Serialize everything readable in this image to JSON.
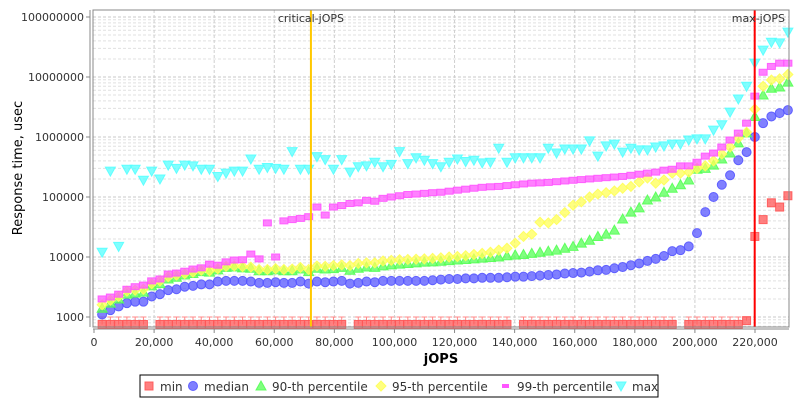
{
  "chart_data": {
    "type": "scatter",
    "xlabel": "jOPS",
    "ylabel": "Response time, usec",
    "xlim": [
      0,
      231500
    ],
    "ylim": [
      680,
      130000000
    ],
    "yscale": "log",
    "grid": true,
    "legend_placement": "bottom",
    "x_ticks": [
      0,
      20000,
      40000,
      60000,
      80000,
      100000,
      120000,
      140000,
      160000,
      180000,
      200000,
      220000
    ],
    "x_tick_labels": [
      "0",
      "20,000",
      "40,000",
      "60,000",
      "80,000",
      "100,000",
      "120,000",
      "140,000",
      "160,000",
      "180,000",
      "200,000",
      "220,000"
    ],
    "y_ticks": [
      1000,
      10000,
      100000,
      1000000,
      10000000,
      100000000
    ],
    "y_tick_labels": [
      "1000",
      "10000",
      "100000",
      "1000000",
      "10000000",
      "100000000"
    ],
    "annotations": [
      {
        "label": "critical-jOPS",
        "x": 72200,
        "color": "#ffc800"
      },
      {
        "label": "max-jOPS",
        "x": 219900,
        "color": "#ff0000"
      }
    ],
    "x": [
      2700,
      5450,
      8200,
      10950,
      13700,
      16450,
      19200,
      21950,
      24700,
      27450,
      30200,
      32950,
      35700,
      38450,
      41200,
      43950,
      46700,
      49450,
      52200,
      54950,
      57700,
      60450,
      63200,
      65950,
      68700,
      71450,
      74200,
      76950,
      79700,
      82450,
      85200,
      87950,
      90700,
      93450,
      96200,
      98950,
      101700,
      104450,
      107200,
      109950,
      112700,
      115450,
      118200,
      120950,
      123700,
      126450,
      129200,
      131950,
      134700,
      137450,
      140200,
      142950,
      145700,
      148450,
      151200,
      153950,
      156700,
      159450,
      162200,
      164950,
      167700,
      170450,
      173200,
      175950,
      178700,
      181450,
      184200,
      186950,
      189700,
      192450,
      195200,
      197950,
      200700,
      203450,
      206200,
      208950,
      211700,
      214450,
      217200,
      219950,
      222700,
      225450,
      228200,
      230950
    ],
    "series": [
      {
        "name": "min",
        "color": "#ff5555",
        "marker": "square",
        "values": [
          750,
          750,
          750,
          750,
          750,
          750,
          null,
          750,
          750,
          750,
          750,
          750,
          750,
          750,
          750,
          750,
          750,
          750,
          750,
          750,
          750,
          750,
          750,
          750,
          750,
          750,
          750,
          750,
          750,
          750,
          null,
          750,
          750,
          750,
          750,
          750,
          750,
          750,
          750,
          750,
          750,
          750,
          750,
          750,
          750,
          750,
          750,
          750,
          750,
          750,
          null,
          750,
          750,
          750,
          750,
          750,
          750,
          750,
          750,
          750,
          750,
          750,
          750,
          750,
          750,
          750,
          750,
          750,
          750,
          750,
          null,
          750,
          750,
          750,
          750,
          750,
          750,
          750,
          870,
          22000,
          42000,
          80000,
          68000,
          105000
        ]
      },
      {
        "name": "median",
        "color": "#5555ff",
        "marker": "circle",
        "values": [
          1100,
          1300,
          1500,
          1700,
          1800,
          1800,
          2200,
          2400,
          2800,
          2900,
          3200,
          3300,
          3500,
          3500,
          3900,
          4000,
          4000,
          4000,
          3900,
          3700,
          3700,
          3800,
          3700,
          3700,
          3900,
          3600,
          3900,
          3800,
          3900,
          4000,
          3600,
          3700,
          3900,
          3800,
          4000,
          4000,
          4000,
          4000,
          4000,
          4000,
          4100,
          4200,
          4300,
          4300,
          4400,
          4400,
          4500,
          4500,
          4500,
          4600,
          4700,
          4700,
          4800,
          4900,
          5000,
          5100,
          5300,
          5400,
          5500,
          5700,
          6000,
          6100,
          6500,
          6800,
          7300,
          7800,
          8600,
          9300,
          10400,
          12500,
          13000,
          15000,
          25000,
          56000,
          100000,
          160000,
          230000,
          410000,
          560000,
          1000000,
          1700000,
          2200000,
          2500000,
          2800000
        ]
      },
      {
        "name": "90-th percentile",
        "color": "#55ff55",
        "marker": "triangle-up",
        "values": [
          1400,
          1700,
          2000,
          2400,
          2500,
          2600,
          3300,
          3600,
          4300,
          4600,
          5000,
          5300,
          5700,
          5600,
          6100,
          6700,
          6800,
          6600,
          6500,
          5900,
          5900,
          6100,
          5900,
          5900,
          6300,
          5700,
          6500,
          6300,
          6400,
          6700,
          6000,
          6500,
          6800,
          6700,
          7100,
          7400,
          7600,
          7800,
          8000,
          8200,
          8300,
          8500,
          8700,
          8900,
          9100,
          9300,
          9600,
          9800,
          10000,
          10500,
          10800,
          11000,
          11500,
          12000,
          12500,
          13000,
          14000,
          15000,
          17000,
          19000,
          22000,
          24000,
          28000,
          43000,
          56000,
          66000,
          89000,
          100000,
          120000,
          140000,
          160000,
          192000,
          290000,
          300000,
          340000,
          430000,
          540000,
          800000,
          1170000,
          2200000,
          5000000,
          6500000,
          6800000,
          8200000
        ]
      },
      {
        "name": "95-th percentile",
        "color": "#ffff55",
        "marker": "diamond",
        "values": [
          1600,
          1900,
          2200,
          2700,
          2800,
          2900,
          3600,
          4000,
          4700,
          5000,
          5300,
          5600,
          6000,
          5900,
          6400,
          7000,
          7100,
          6900,
          6800,
          6200,
          6200,
          6400,
          6200,
          6300,
          6700,
          6200,
          7100,
          7000,
          7200,
          7400,
          7200,
          7800,
          8000,
          8000,
          8600,
          8800,
          9000,
          9100,
          9200,
          9300,
          9500,
          9700,
          10000,
          10200,
          10500,
          11000,
          11500,
          12000,
          13000,
          14000,
          17000,
          22000,
          24000,
          38000,
          37000,
          42000,
          55000,
          73000,
          83000,
          100000,
          112000,
          118000,
          126000,
          140000,
          150000,
          178000,
          207000,
          170000,
          192000,
          250000,
          250000,
          260000,
          300000,
          330000,
          400000,
          520000,
          680000,
          960000,
          1200000,
          2900000,
          7000000,
          8900000,
          9300000,
          11000000
        ]
      },
      {
        "name": "99-th percentile",
        "color": "#ff55ff",
        "marker": "rect",
        "values": [
          2000,
          2150,
          2400,
          2900,
          3200,
          3400,
          4000,
          4300,
          5200,
          5400,
          5800,
          6300,
          6600,
          7600,
          7300,
          8300,
          8900,
          9000,
          11200,
          9300,
          37000,
          10000,
          40000,
          42000,
          44000,
          47000,
          68000,
          50000,
          68000,
          72000,
          78000,
          80000,
          88000,
          85000,
          95000,
          100000,
          105000,
          110000,
          112000,
          115000,
          118000,
          120000,
          125000,
          130000,
          135000,
          140000,
          145000,
          148000,
          150000,
          155000,
          160000,
          165000,
          170000,
          172000,
          175000,
          180000,
          185000,
          190000,
          195000,
          200000,
          205000,
          210000,
          215000,
          220000,
          230000,
          240000,
          250000,
          260000,
          280000,
          290000,
          330000,
          330000,
          380000,
          480000,
          540000,
          680000,
          890000,
          1160000,
          1700000,
          4800000,
          12000000,
          15000000,
          17000000,
          17000000
        ]
      },
      {
        "name": "max",
        "color": "#55ffff",
        "marker": "triangle-down",
        "values": [
          12000,
          270000,
          15000,
          290000,
          290000,
          190000,
          270000,
          200000,
          340000,
          300000,
          340000,
          330000,
          290000,
          290000,
          220000,
          250000,
          270000,
          270000,
          430000,
          290000,
          310000,
          300000,
          290000,
          570000,
          290000,
          290000,
          470000,
          420000,
          290000,
          420000,
          260000,
          320000,
          330000,
          380000,
          320000,
          350000,
          570000,
          360000,
          450000,
          410000,
          360000,
          320000,
          380000,
          430000,
          390000,
          410000,
          370000,
          380000,
          650000,
          380000,
          450000,
          450000,
          450000,
          450000,
          650000,
          540000,
          630000,
          630000,
          630000,
          860000,
          480000,
          710000,
          760000,
          560000,
          650000,
          610000,
          610000,
          680000,
          710000,
          760000,
          760000,
          890000,
          930000,
          930000,
          1300000,
          1600000,
          2600000,
          4300000,
          7000000,
          17000000,
          28000000,
          38000000,
          37000000,
          56000000
        ]
      }
    ]
  }
}
